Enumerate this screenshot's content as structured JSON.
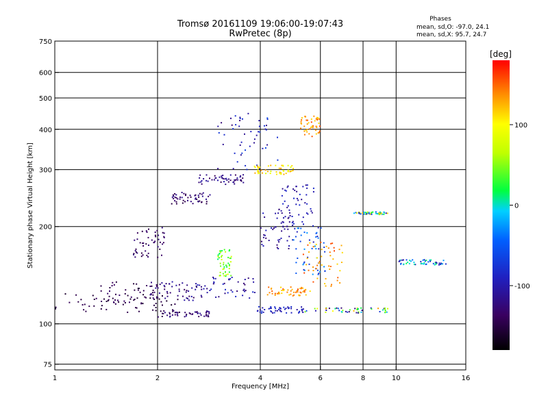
{
  "chart_data": {
    "type": "scatter",
    "title": "Tromsø 20161109 19:06:00-19:07:43",
    "subtitle": "RwPretec (8p)",
    "xlabel": "Frequency [MHz]",
    "ylabel": "Stationary phase Virtual Height [km]",
    "x_scale": "log",
    "y_scale": "log",
    "xlim": [
      1,
      16
    ],
    "ylim": [
      72,
      750
    ],
    "x_ticks": [
      1,
      2,
      4,
      6,
      8,
      10,
      16
    ],
    "x_tick_labels": [
      "1",
      "2",
      "4",
      "6",
      "8",
      "10",
      "16"
    ],
    "y_ticks": [
      75,
      100,
      200,
      300,
      400,
      500,
      600,
      750
    ],
    "y_tick_labels": [
      "75",
      "100",
      "200",
      "300",
      "400",
      "500",
      "600",
      "750"
    ],
    "grid": true,
    "phase_info": {
      "heading": "Phases",
      "line_o": "mean, sd,O: -97.0, 24.1",
      "line_x": "mean, sd,X:  95.7, 24.7"
    },
    "colorbar": {
      "label": "[deg]",
      "range": [
        -180,
        180
      ],
      "ticks": [
        100,
        0,
        -100
      ],
      "tick_labels": [
        "100",
        "0",
        "-100"
      ]
    },
    "clusters": [
      {
        "band": [
          1.0,
          2.3
        ],
        "height": [
          107,
          125
        ],
        "phase": [
          -160,
          -140
        ]
      },
      {
        "band": [
          1.3,
          2.0
        ],
        "height": [
          115,
          135
        ],
        "phase": [
          -160,
          -130
        ]
      },
      {
        "band": [
          1.7,
          2.1
        ],
        "height": [
          160,
          200
        ],
        "phase": [
          -150,
          -120
        ]
      },
      {
        "band": [
          1.9,
          2.6
        ],
        "height": [
          118,
          135
        ],
        "phase": [
          -140,
          -100
        ]
      },
      {
        "band": [
          2.0,
          2.9
        ],
        "height": [
          105,
          110
        ],
        "phase": [
          -150,
          -110
        ]
      },
      {
        "band": [
          2.2,
          2.9
        ],
        "height": [
          235,
          255
        ],
        "phase": [
          -150,
          -110
        ]
      },
      {
        "band": [
          2.6,
          3.6
        ],
        "height": [
          270,
          290
        ],
        "phase": [
          -140,
          -100
        ]
      },
      {
        "band": [
          2.6,
          3.9
        ],
        "height": [
          120,
          140
        ],
        "phase": [
          -130,
          -80
        ]
      },
      {
        "band": [
          3.0,
          3.3
        ],
        "height": [
          140,
          170
        ],
        "phase": [
          10,
          80
        ]
      },
      {
        "band": [
          3.0,
          4.5
        ],
        "height": [
          300,
          450
        ],
        "phase": [
          -130,
          -60
        ]
      },
      {
        "band": [
          3.8,
          5.0
        ],
        "height": [
          290,
          310
        ],
        "phase": [
          80,
          140
        ]
      },
      {
        "band": [
          3.9,
          5.4
        ],
        "height": [
          108,
          113
        ],
        "phase": [
          -110,
          -70
        ]
      },
      {
        "band": [
          4.0,
          5.0
        ],
        "height": [
          170,
          230
        ],
        "phase": [
          -130,
          -90
        ]
      },
      {
        "band": [
          4.2,
          5.6
        ],
        "height": [
          122,
          130
        ],
        "phase": [
          110,
          160
        ]
      },
      {
        "band": [
          4.6,
          5.8
        ],
        "height": [
          200,
          270
        ],
        "phase": [
          -120,
          -80
        ]
      },
      {
        "band": [
          5.0,
          6.2
        ],
        "height": [
          140,
          200
        ],
        "phase": [
          -100,
          -20
        ]
      },
      {
        "band": [
          5.2,
          6.0
        ],
        "height": [
          380,
          440
        ],
        "phase": [
          110,
          160
        ]
      },
      {
        "band": [
          5.3,
          7.0
        ],
        "height": [
          130,
          180
        ],
        "phase": [
          110,
          160
        ]
      },
      {
        "band": [
          5.4,
          9.5
        ],
        "height": [
          108,
          112
        ],
        "phase": [
          -130,
          140
        ]
      },
      {
        "band": [
          7.5,
          9.5
        ],
        "height": [
          218,
          222
        ],
        "phase": [
          -110,
          130
        ]
      },
      {
        "band": [
          10.2,
          14.0
        ],
        "height": [
          152,
          158
        ],
        "phase": [
          -110,
          20
        ]
      }
    ]
  }
}
